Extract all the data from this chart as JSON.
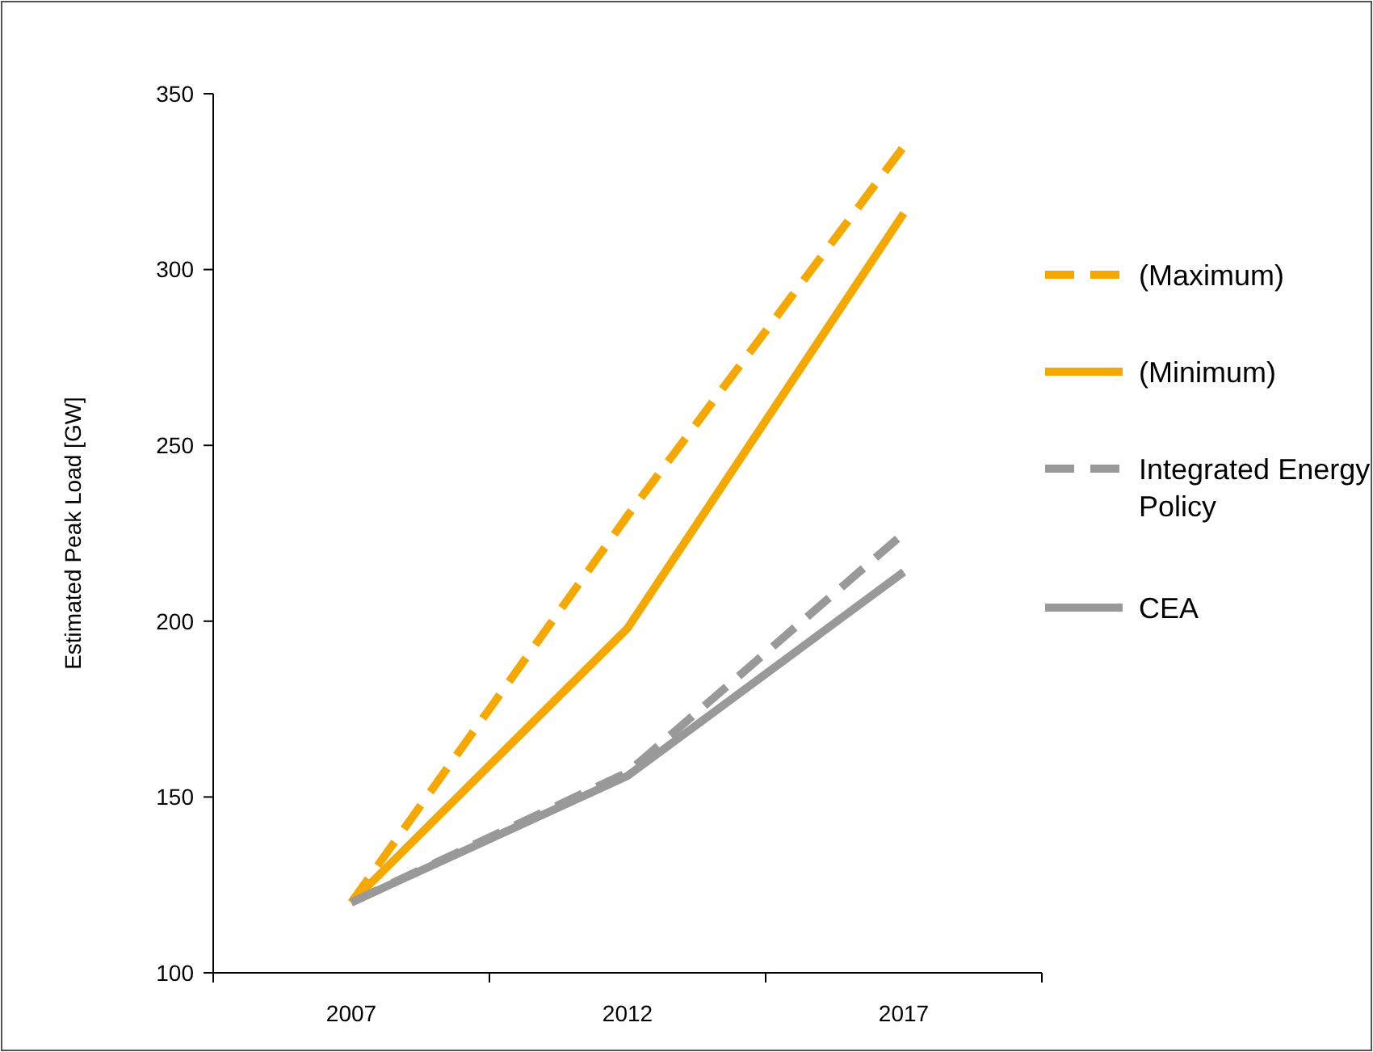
{
  "chart_data": {
    "type": "line",
    "ylabel": "Estimated Peak Load [GW]",
    "categories": [
      "2007",
      "2012",
      "2017"
    ],
    "ylim": [
      100,
      350
    ],
    "yticks": [
      100,
      150,
      200,
      250,
      300,
      350
    ],
    "grid": false,
    "legend": "right",
    "series": [
      {
        "name": "(Maximum)",
        "color": "#f5a800",
        "line_style": "dashed",
        "values": [
          120,
          230,
          335
        ]
      },
      {
        "name": "(Minimum)",
        "color": "#f5a800",
        "line_style": "solid",
        "values": [
          120,
          198,
          316
        ]
      },
      {
        "name": "Integrated Energy Policy",
        "color": "#999999",
        "line_style": "dashed",
        "values": [
          120,
          157,
          225
        ]
      },
      {
        "name": "CEA",
        "color": "#999999",
        "line_style": "solid",
        "values": [
          120,
          156,
          214
        ]
      }
    ]
  }
}
